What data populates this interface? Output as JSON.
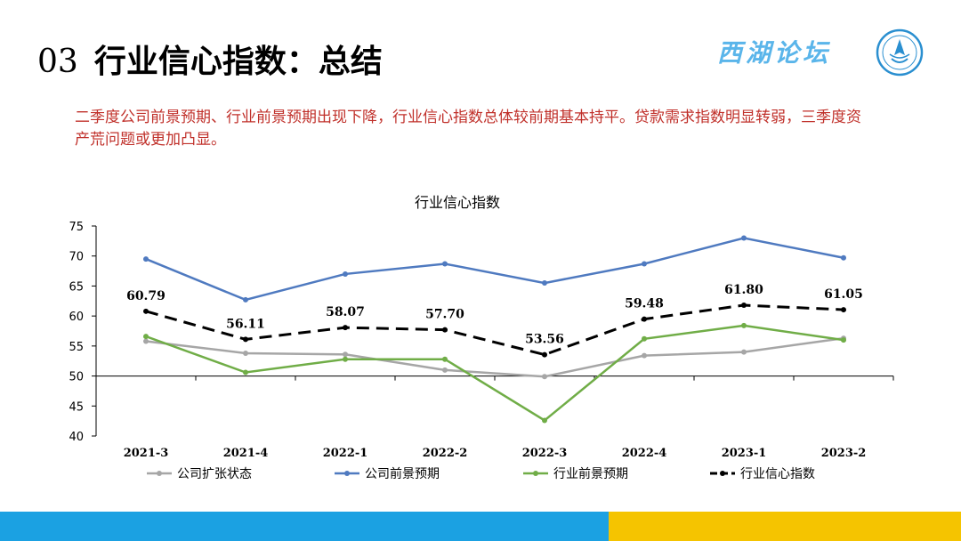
{
  "header": {
    "section_number": "03",
    "title": "行业信心指数：总结",
    "brand_text": "西湖论坛"
  },
  "summary": "二季度公司前景预期、行业前景预期出现下降，行业信心指数总体较前期基本持平。贷款需求指数明显转弱，三季度资产荒问题或更加凸显。",
  "chart_data": {
    "type": "line",
    "title": "行业信心指数",
    "xlabel": "",
    "ylabel": "",
    "ylim": [
      40,
      75
    ],
    "yticks": [
      40,
      45,
      50,
      55,
      60,
      65,
      70,
      75
    ],
    "categories": [
      "2021-3",
      "2021-4",
      "2022-1",
      "2022-2",
      "2022-3",
      "2022-4",
      "2023-1",
      "2023-2"
    ],
    "grid": false,
    "legend_position": "bottom",
    "series": [
      {
        "name": "公司扩张状态",
        "color": "#a6a6a6",
        "dash": false,
        "values": [
          55.8,
          53.8,
          53.6,
          51.0,
          49.9,
          53.4,
          54.0,
          56.3
        ]
      },
      {
        "name": "公司前景预期",
        "color": "#4f7ac0",
        "dash": false,
        "values": [
          69.5,
          62.7,
          67.0,
          68.7,
          65.5,
          68.7,
          73.0,
          69.7
        ]
      },
      {
        "name": "行业前景预期",
        "color": "#70ad47",
        "dash": false,
        "values": [
          56.6,
          50.6,
          52.8,
          52.8,
          42.6,
          56.2,
          58.4,
          56.0
        ]
      },
      {
        "name": "行业信心指数",
        "color": "#000000",
        "dash": true,
        "values": [
          60.79,
          56.11,
          58.07,
          57.7,
          53.56,
          59.48,
          61.8,
          61.05
        ],
        "labels": [
          "60.79",
          "56.11",
          "58.07",
          "57.70",
          "53.56",
          "59.48",
          "61.80",
          "61.05"
        ]
      }
    ]
  }
}
